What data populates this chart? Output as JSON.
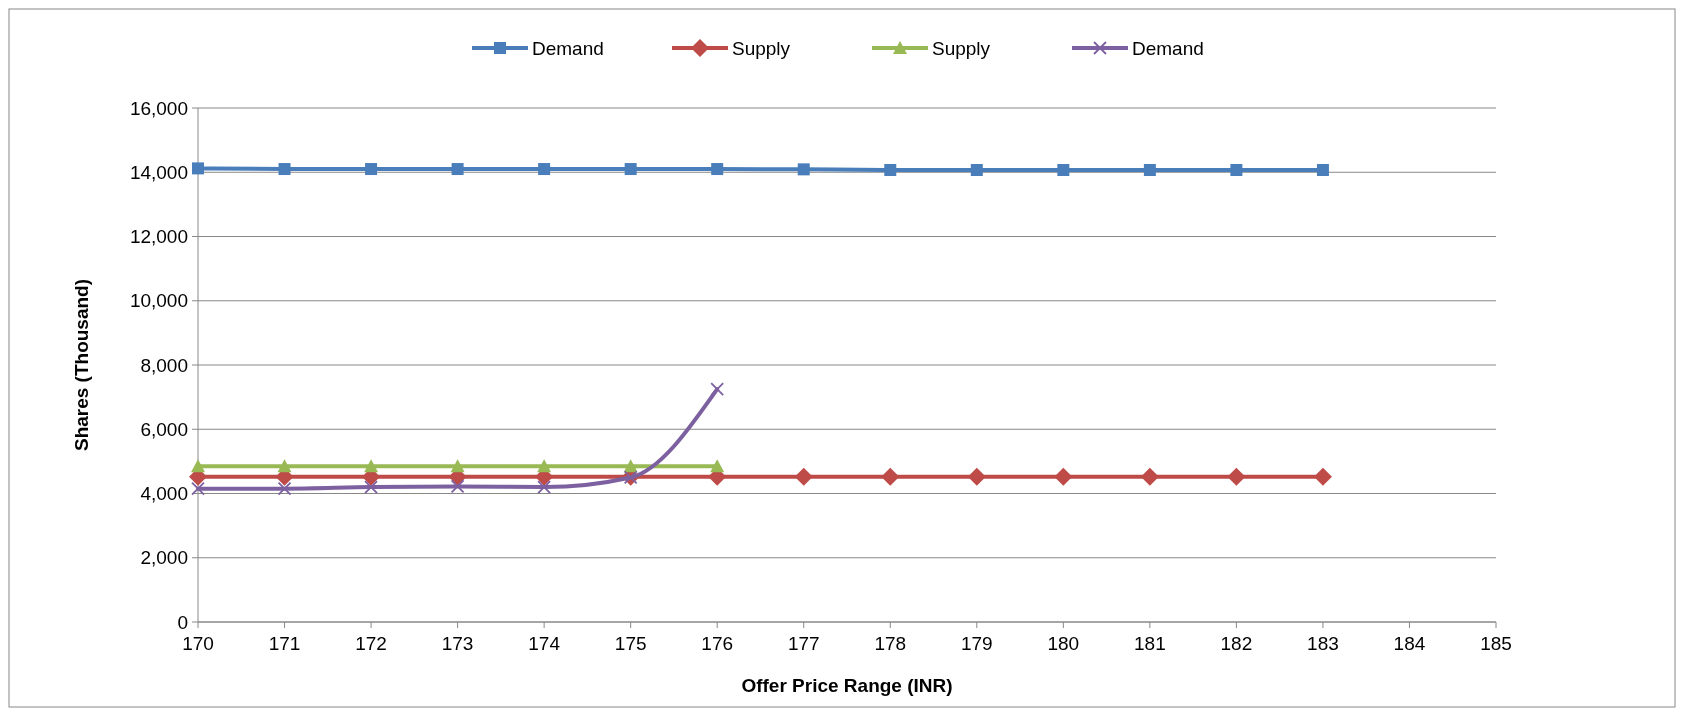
{
  "chart_data": {
    "type": "line",
    "xlabel": "Offer Price Range (INR)",
    "ylabel": "Shares (Thousand)",
    "xlim": [
      170,
      185
    ],
    "xticks": [
      170,
      171,
      172,
      173,
      174,
      175,
      176,
      177,
      178,
      179,
      180,
      181,
      182,
      183,
      184,
      185
    ],
    "ylim": [
      0,
      16000
    ],
    "yticks": [
      {
        "value": 0,
        "label": "0"
      },
      {
        "value": 2000,
        "label": "2,000"
      },
      {
        "value": 4000,
        "label": "4,000"
      },
      {
        "value": 6000,
        "label": "6,000"
      },
      {
        "value": 8000,
        "label": "8,000"
      },
      {
        "value": 10000,
        "label": "10,000"
      },
      {
        "value": 12000,
        "label": "12,000"
      },
      {
        "value": 14000,
        "label": "14,000"
      },
      {
        "value": 16000,
        "label": "16,000"
      }
    ],
    "grid": "y",
    "legend": "top",
    "line_style": "solid",
    "series": [
      {
        "name": "Demand",
        "color": "#4a7ebb",
        "marker": "square",
        "x": [
          170,
          171,
          172,
          173,
          174,
          175,
          176,
          177,
          178,
          179,
          180,
          181,
          182,
          183
        ],
        "values": [
          14120,
          14100,
          14100,
          14100,
          14100,
          14100,
          14100,
          14090,
          14070,
          14070,
          14070,
          14070,
          14070,
          14070
        ]
      },
      {
        "name": "Supply",
        "color": "#be4b48",
        "marker": "diamond",
        "x": [
          170,
          171,
          172,
          173,
          174,
          175,
          176,
          177,
          178,
          179,
          180,
          181,
          182,
          183
        ],
        "values": [
          4520,
          4520,
          4520,
          4520,
          4520,
          4520,
          4520,
          4520,
          4520,
          4520,
          4520,
          4520,
          4520,
          4520
        ]
      },
      {
        "name": "Supply",
        "color": "#98b954",
        "marker": "triangle",
        "x": [
          170,
          171,
          172,
          173,
          174,
          175,
          176
        ],
        "values": [
          4850,
          4850,
          4850,
          4850,
          4850,
          4850,
          4850
        ]
      },
      {
        "name": "Demand",
        "color": "#7d60a0",
        "marker": "cross",
        "x": [
          170,
          171,
          172,
          173,
          174,
          175,
          176
        ],
        "values": [
          4150,
          4150,
          4200,
          4220,
          4200,
          4500,
          7250
        ]
      }
    ]
  }
}
